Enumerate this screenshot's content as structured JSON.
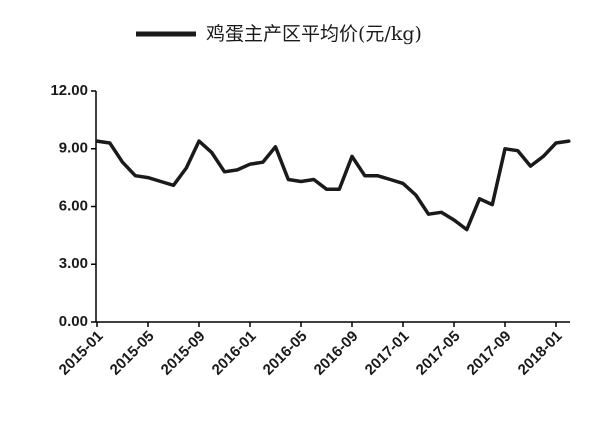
{
  "chart_data": {
    "type": "line",
    "legend": "鸡蛋主产区平均价(元/kg)",
    "categories": [
      "2015-01",
      null,
      null,
      null,
      "2015-05",
      null,
      null,
      null,
      "2015-09",
      null,
      null,
      null,
      "2016-01",
      null,
      null,
      null,
      "2016-05",
      null,
      null,
      null,
      "2016-09",
      null,
      null,
      null,
      "2017-01",
      null,
      null,
      null,
      "2017-05",
      null,
      null,
      null,
      "2017-09",
      null,
      null,
      null,
      "2018-01",
      null
    ],
    "series": [
      {
        "name": "鸡蛋主产区平均价(元/kg)",
        "color": "#1a1a1a",
        "values": [
          9.4,
          9.3,
          8.3,
          7.6,
          7.5,
          7.3,
          7.1,
          8.0,
          9.4,
          8.8,
          7.8,
          7.9,
          8.2,
          8.3,
          9.1,
          7.4,
          7.3,
          7.4,
          6.9,
          6.9,
          8.6,
          7.6,
          7.6,
          7.4,
          7.2,
          6.6,
          5.6,
          5.7,
          5.3,
          4.8,
          6.4,
          6.1,
          9.0,
          8.9,
          8.1,
          8.6,
          9.3,
          9.4
        ]
      }
    ],
    "ylim": [
      0,
      12
    ],
    "yticks": [
      {
        "value": 0,
        "label": "0.00"
      },
      {
        "value": 3,
        "label": "3.00"
      },
      {
        "value": 6,
        "label": "6.00"
      },
      {
        "value": 9,
        "label": "9.00"
      },
      {
        "value": 12,
        "label": "12.00"
      }
    ],
    "grid": false
  }
}
